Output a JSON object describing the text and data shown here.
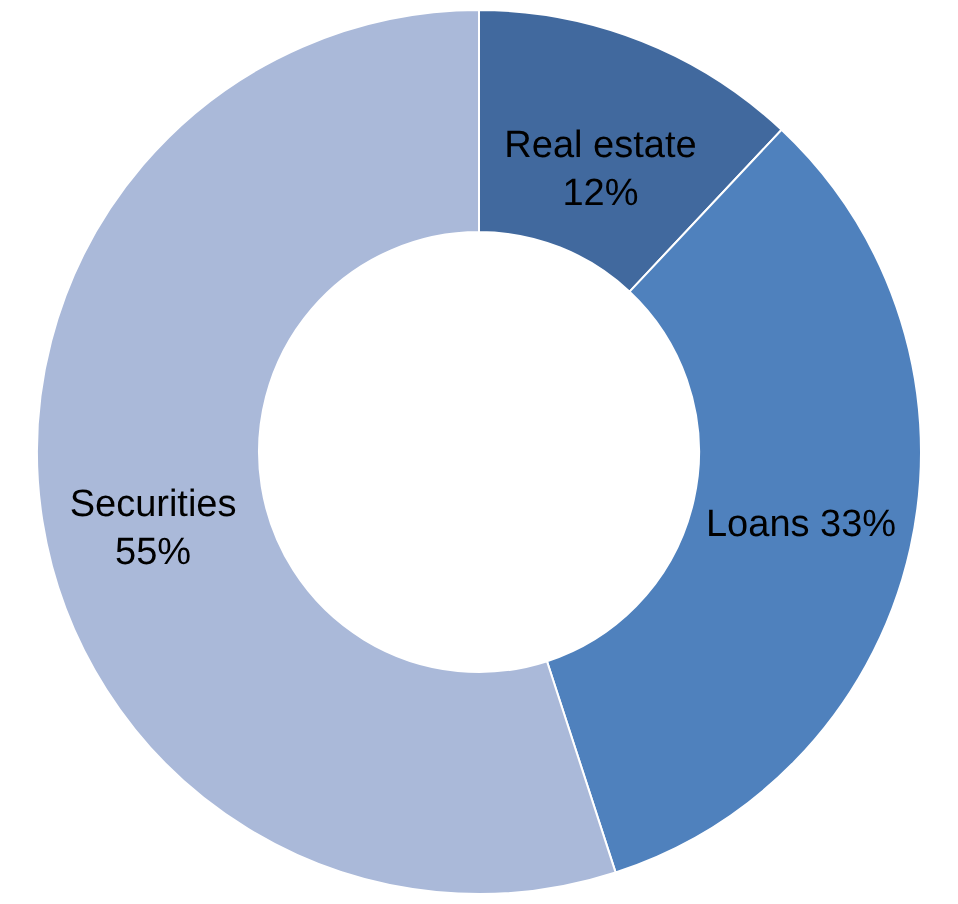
{
  "chart_data": {
    "type": "donut",
    "categories": [
      "Real estate",
      "Loans",
      "Securities"
    ],
    "values": [
      12,
      33,
      55
    ],
    "colors": [
      "#41699e",
      "#4f81bd",
      "#aab9d9"
    ],
    "value_labels": [
      "12%",
      "33%",
      "55%"
    ]
  }
}
